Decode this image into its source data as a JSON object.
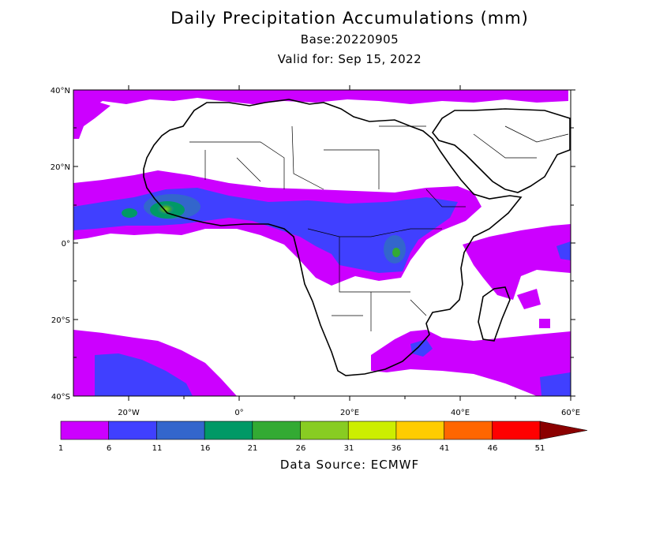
{
  "header": {
    "title": "Daily Precipitation Accumulations (mm)",
    "base": "Base:20220905",
    "valid": "Valid for: Sep 15, 2022"
  },
  "map": {
    "lat_labels": [
      "40°N",
      "20°N",
      "0°",
      "20°S",
      "40°S"
    ],
    "lon_labels": [
      "20°W",
      "0°",
      "20°E",
      "40°E",
      "60°E"
    ],
    "extent": {
      "lon_min": -30,
      "lon_max": 60,
      "lat_min": -40,
      "lat_max": 40
    }
  },
  "legend": {
    "ticks": [
      "1",
      "6",
      "11",
      "16",
      "21",
      "26",
      "31",
      "36",
      "41",
      "46",
      "51"
    ],
    "colors": [
      "#cc00ff",
      "#4040ff",
      "#3366cc",
      "#009966",
      "#33aa33",
      "#88cc22",
      "#ccee00",
      "#ffcc00",
      "#ff6600",
      "#ff0000",
      "#8b0000"
    ]
  },
  "footer": {
    "source": "Data Source: ECMWF"
  }
}
